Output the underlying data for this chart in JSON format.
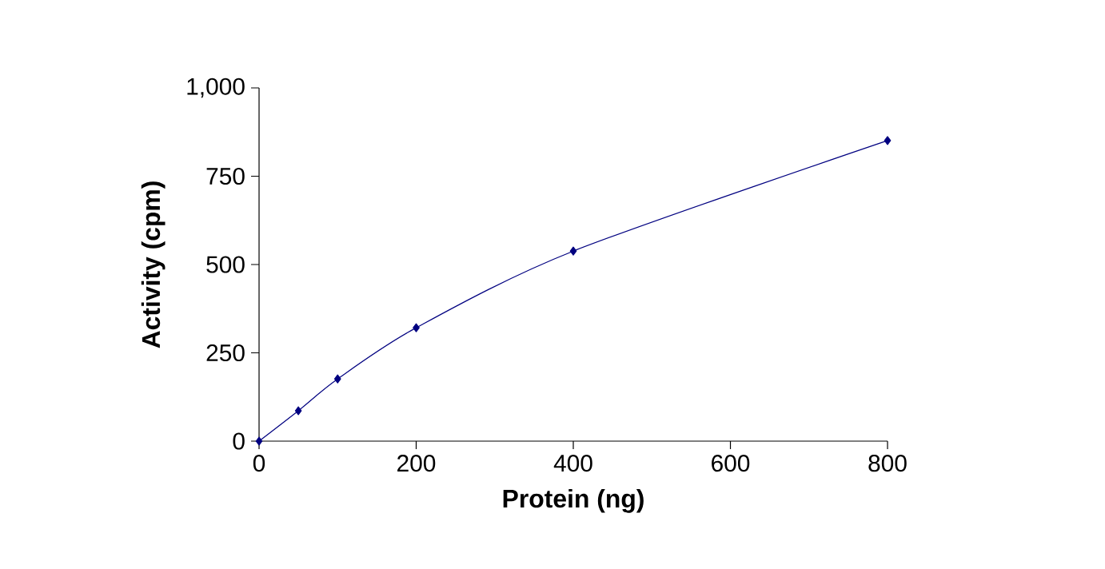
{
  "chart_data": {
    "type": "line",
    "xlabel": "Protein (ng)",
    "ylabel": "Activity (cpm)",
    "x": [
      0,
      50,
      100,
      200,
      400,
      800
    ],
    "values": [
      0,
      86,
      176,
      321,
      538,
      851
    ],
    "color": "#000080",
    "marker": "diamond",
    "xlim": [
      0,
      800
    ],
    "ylim": [
      0,
      1000
    ],
    "xticks": [
      0,
      200,
      400,
      600,
      800
    ],
    "yticks": [
      0,
      250,
      500,
      750,
      {
        "value": 1000,
        "label": "1,000"
      }
    ]
  }
}
